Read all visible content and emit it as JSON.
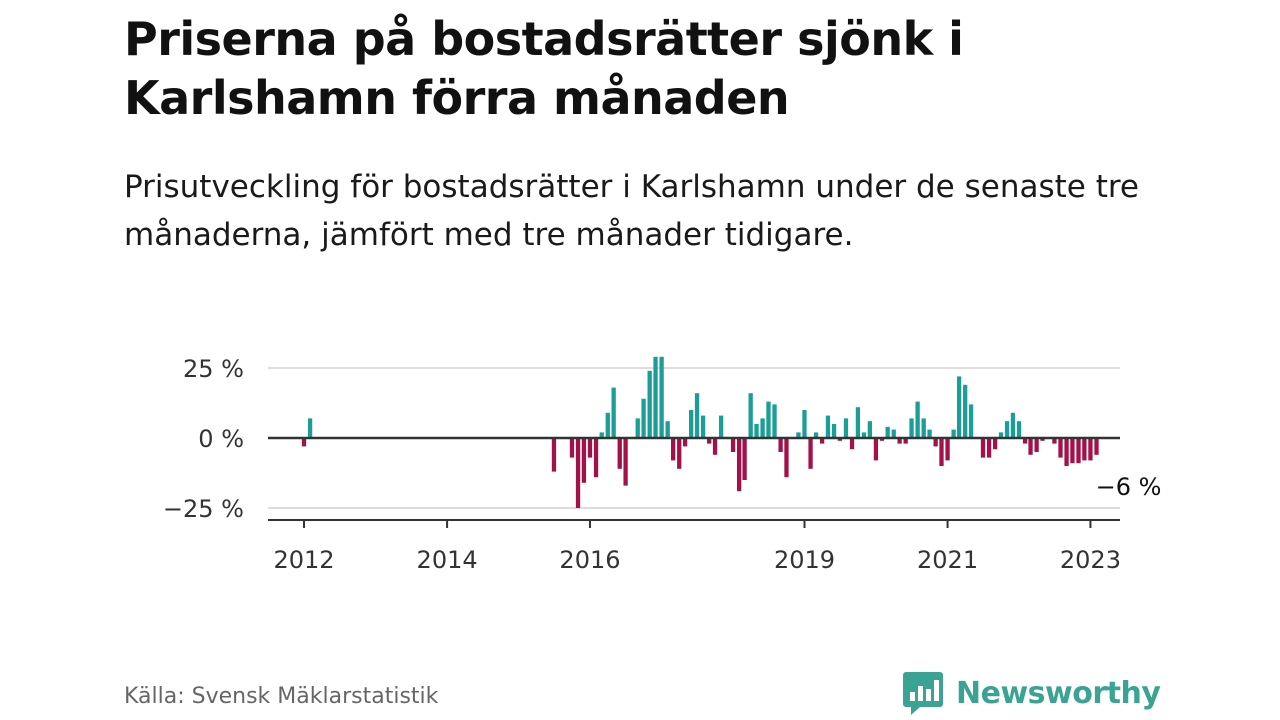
{
  "header": {
    "title": "Priserna på bostadsrätter sjönk i Karlshamn förra månaden",
    "subtitle": "Prisutveckling för bostadsrätter i Karlshamn under de senaste tre månaderna, jämfört med tre månader tidigare."
  },
  "footer": {
    "source": "Källa: Svensk Mäklarstatistik",
    "brand": "Newsworthy"
  },
  "colors": {
    "positive": "#1a9e96",
    "negative": "#a3104a",
    "brand": "#3aa394",
    "grid": "#dddddd",
    "axis": "#333333"
  },
  "chart_data": {
    "type": "bar",
    "title": "",
    "xlabel": "",
    "ylabel": "",
    "ylim": [
      -28,
      33
    ],
    "y_ticks": [
      25,
      0,
      -25
    ],
    "y_tick_labels": [
      "25 %",
      "0 %",
      "−25 %"
    ],
    "x_ticks": [
      "2012",
      "2014",
      "2016",
      "2019",
      "2021",
      "2023"
    ],
    "x_tick_dates": [
      "2012-01",
      "2014-01",
      "2016-01",
      "2019-01",
      "2021-01",
      "2023-01"
    ],
    "grid": true,
    "last_value_label": "−6 %",
    "x": [
      "2012-01",
      "2012-02",
      "2015-07",
      "2015-10",
      "2015-11",
      "2015-12",
      "2016-01",
      "2016-02",
      "2016-03",
      "2016-04",
      "2016-05",
      "2016-06",
      "2016-07",
      "2016-08",
      "2016-09",
      "2016-10",
      "2016-11",
      "2016-12",
      "2017-01",
      "2017-02",
      "2017-03",
      "2017-04",
      "2017-05",
      "2017-06",
      "2017-07",
      "2017-08",
      "2017-09",
      "2017-10",
      "2017-11",
      "2017-12",
      "2018-01",
      "2018-02",
      "2018-03",
      "2018-04",
      "2018-05",
      "2018-06",
      "2018-07",
      "2018-08",
      "2018-09",
      "2018-10",
      "2018-11",
      "2018-12",
      "2019-01",
      "2019-02",
      "2019-03",
      "2019-04",
      "2019-05",
      "2019-06",
      "2019-07",
      "2019-08",
      "2019-09",
      "2019-10",
      "2019-11",
      "2019-12",
      "2020-01",
      "2020-02",
      "2020-03",
      "2020-04",
      "2020-05",
      "2020-06",
      "2020-07",
      "2020-08",
      "2020-09",
      "2020-10",
      "2020-11",
      "2020-12",
      "2021-01",
      "2021-02",
      "2021-03",
      "2021-04",
      "2021-05",
      "2021-06",
      "2021-07",
      "2021-08",
      "2021-09",
      "2021-10",
      "2021-11",
      "2021-12",
      "2022-01",
      "2022-02",
      "2022-03",
      "2022-04",
      "2022-05",
      "2022-06",
      "2022-07",
      "2022-08",
      "2022-09",
      "2022-10",
      "2022-11",
      "2022-12",
      "2023-01",
      "2023-02"
    ],
    "values": [
      -3,
      7,
      -12,
      -7,
      -25,
      -16,
      -7,
      -14,
      2,
      9,
      18,
      -11,
      -17,
      0,
      7,
      14,
      24,
      29,
      29,
      6,
      -8,
      -11,
      -3,
      10,
      16,
      8,
      -2,
      -6,
      8,
      0,
      -5,
      -19,
      -15,
      16,
      5,
      7,
      13,
      12,
      -5,
      -14,
      0,
      2,
      10,
      -11,
      2,
      -2,
      8,
      5,
      -1,
      7,
      -4,
      11,
      2,
      6,
      -8,
      -1,
      4,
      3,
      -2,
      -2,
      7,
      13,
      7,
      3,
      -3,
      -10,
      -8,
      3,
      22,
      19,
      12,
      0,
      -7,
      -7,
      -4,
      2,
      6,
      9,
      6,
      -2,
      -6,
      -5,
      -1,
      0,
      -2,
      -7,
      -10,
      -9,
      -9,
      -8,
      -8,
      -6
    ]
  }
}
